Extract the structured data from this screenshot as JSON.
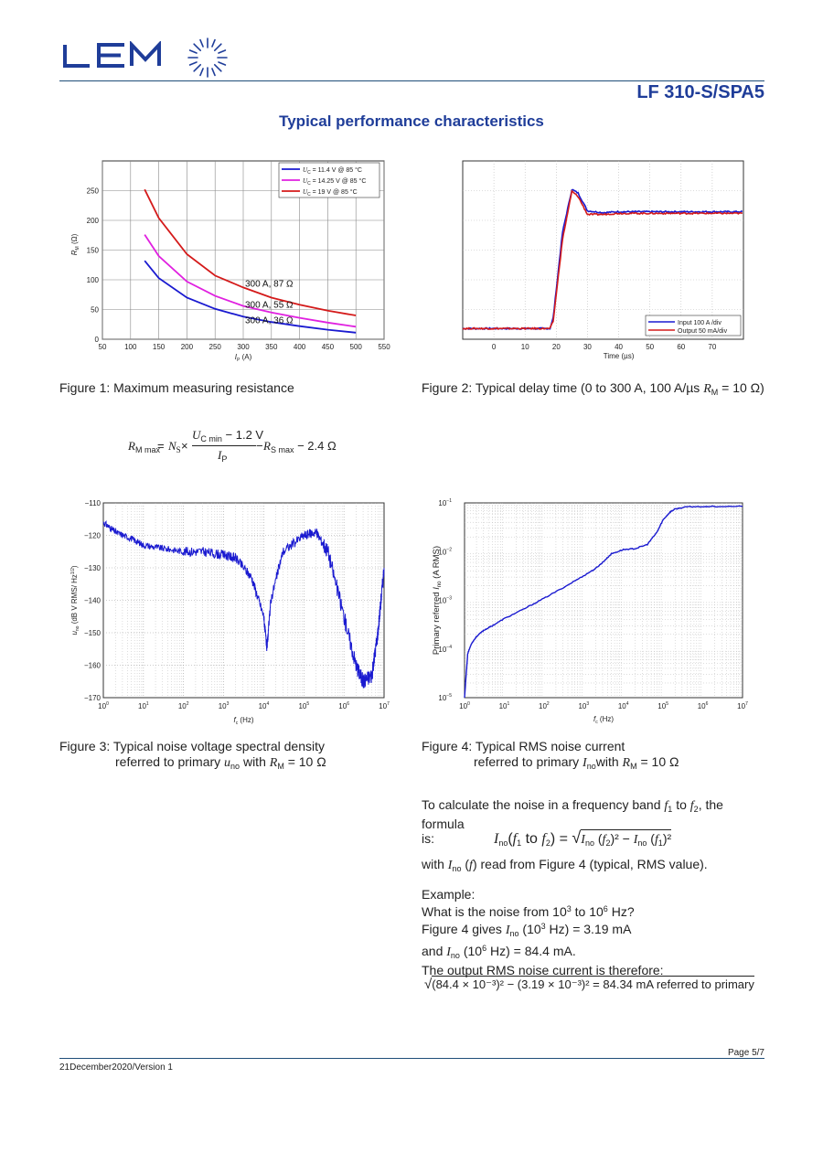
{
  "header": {
    "logo_text": "LEM",
    "product": "LF 310-S/SPA5",
    "section_title": "Typical performance characteristics"
  },
  "colors": {
    "brand_blue": "#1f3d99",
    "rule": "#1f4e79",
    "series_blue": "#1a1ad0",
    "series_magenta": "#e020e0",
    "series_red": "#d41a1a"
  },
  "figures": {
    "fig1": {
      "caption": "Figure 1: Maximum measuring resistance",
      "legend": [
        "= 11.4 V @ 85 °C",
        "= 14.25 V @ 85 °C",
        "= 19 V @ 85 °C"
      ],
      "legend_symbol": "U",
      "legend_sub": "C",
      "ylabel": "R",
      "ylabel_sub": "M",
      "ylabel_unit": "(Ω)",
      "xlabel": "I",
      "xlabel_sub": "P",
      "xlabel_unit": "(A)",
      "annotations": [
        "300 A, 87 Ω",
        "300 A, 55 Ω",
        "300 A, 36 Ω"
      ]
    },
    "fig2": {
      "caption_prefix": "Figure 2: Typical delay time (0 to 300 A, 100 A/µs ",
      "caption_var": "R",
      "caption_sub": "M",
      "caption_suffix": " = 10 Ω)",
      "legend": [
        "Input 100 A /div",
        "Output 50 mA/div"
      ],
      "xlabel": "Time (µs)"
    },
    "fig3": {
      "caption_line1": "Figure 3:  Typical noise voltage spectral density",
      "caption_line2_prefix": "referred to primary ",
      "caption_var": "u",
      "caption_var_sub": "no",
      "caption_mid": " with ",
      "caption_r": "R",
      "caption_r_sub": "M",
      "caption_suffix": " = 10 Ω",
      "ylabel": "u",
      "ylabel_sub": "no",
      "ylabel_unit": "(dB V RMS/ Hz",
      "ylabel_sup": "1/2",
      "ylabel_end": ")",
      "xlabel": "f",
      "xlabel_sub": "c",
      "xlabel_unit": "(Hz)"
    },
    "fig4": {
      "caption_line1": "Figure 4: Typical RMS noise current",
      "caption_line2_prefix": "referred to primary ",
      "caption_var": "I",
      "caption_var_sub": "no",
      "caption_mid": "with ",
      "caption_r": "R",
      "caption_r_sub": "M",
      "caption_suffix": " = 10 Ω",
      "ylabel_prefix": "Primary referred ",
      "ylabel_var": "I",
      "ylabel_sub": "no",
      "ylabel_unit": "(A RMS)",
      "xlabel": "f",
      "xlabel_sub": "c",
      "xlabel_unit": "(Hz)"
    }
  },
  "formula1": {
    "lhs": "R",
    "lhs_sub": "M max",
    "eq": " = ",
    "ns": "N",
    "ns_sub": "S",
    "times": " × ",
    "num_u": "U",
    "num_u_sub": "C min",
    "num_rest": " − 1.2 V",
    "den": "I",
    "den_sub": "P",
    "minus": " − ",
    "rs": "R",
    "rs_sub": "S max",
    "tail": " − 2.4 Ω"
  },
  "noise_text": {
    "intro_1": "To calculate the noise in a frequency band ",
    "f1": "f",
    "f1_sub": "1",
    "intro_to": " to ",
    "f2": "f",
    "f2_sub": "2",
    "intro_2": ", the formula",
    "intro_3": "is:",
    "with_1": "with ",
    "with_var": "I",
    "with_sub": "no",
    "with_paren": " (",
    "with_f": "f",
    "with_2": ") read from Figure 4 (typical, RMS value).",
    "example_label": "Example:",
    "q_1": "What is the noise from 10",
    "q_exp1": "3",
    "q_2": " to 10",
    "q_exp2": "6",
    "q_3": " Hz?",
    "g_1": "Figure 4 gives ",
    "g_var": "I",
    "g_sub": "no",
    "g_2": " (10",
    "g_exp": "3",
    "g_3": " Hz) = 3.19 mA",
    "a_1": "and ",
    "a_var": "I",
    "a_sub": "no",
    "a_2": " (10",
    "a_exp": "6",
    "a_3": " Hz) = 84.4 mA.",
    "result_label": "The output RMS noise current is therefore:",
    "calc": "(84.4 × 10⁻³)² − (3.19 × 10⁻³)² = 84.34 mA referred to primary"
  },
  "formula2": {
    "lhs": "I",
    "lhs_sub": "no",
    "open": "(",
    "f1": "f",
    "f1_sub": "1",
    "to": " to ",
    "f2": "f",
    "f2_sub": "2",
    "close": ") = ",
    "r1": "I",
    "r1_sub": "no",
    "r1_arg": " (",
    "r1_f": "f",
    "r1_f_sub": "2",
    "r1_close": ")² − ",
    "r2": "I",
    "r2_sub": "no",
    "r2_arg": " (",
    "r2_f": "f",
    "r2_f_sub": "1",
    "r2_close": ")²"
  },
  "footer": {
    "page": "Page 5/7",
    "version": "21December2020/Version 1"
  },
  "chart_data": [
    {
      "type": "line",
      "title": "",
      "x_ticks": [
        50,
        100,
        150,
        200,
        250,
        300,
        350,
        400,
        450,
        500,
        550
      ],
      "y_ticks": [
        0,
        50,
        100,
        150,
        200,
        250
      ],
      "xlim": [
        50,
        550
      ],
      "ylim": [
        0,
        300
      ],
      "grid": true,
      "legend_position": "top-right",
      "series": [
        {
          "name": "U_C = 11.4 V @ 85 °C",
          "x": [
            125,
            150,
            200,
            250,
            300,
            350,
            400,
            450,
            500
          ],
          "y": [
            132,
            103,
            70,
            51,
            38,
            29,
            22,
            16,
            11
          ]
        },
        {
          "name": "U_C = 14.25 V @ 85 °C",
          "x": [
            125,
            150,
            200,
            250,
            300,
            350,
            400,
            450,
            500
          ],
          "y": [
            176,
            140,
            97,
            73,
            56,
            45,
            36,
            28,
            21
          ]
        },
        {
          "name": "U_C = 19 V @ 85 °C",
          "x": [
            125,
            150,
            200,
            250,
            300,
            350,
            400,
            450,
            500
          ],
          "y": [
            252,
            204,
            143,
            107,
            87,
            70,
            58,
            48,
            40
          ]
        }
      ]
    },
    {
      "type": "line",
      "title": "",
      "x_ticks": [
        0,
        10,
        20,
        30,
        40,
        50,
        60,
        70
      ],
      "xlim": [
        -10,
        80
      ],
      "ylim": [
        0,
        1
      ],
      "grid": true,
      "legend_position": "bottom-right",
      "series": [
        {
          "name": "Input 100 A /div",
          "x": [
            -10,
            18,
            19,
            22,
            25,
            27,
            30,
            35,
            40,
            50,
            60,
            80
          ],
          "y": [
            0.06,
            0.06,
            0.12,
            0.6,
            0.84,
            0.82,
            0.72,
            0.71,
            0.715,
            0.715,
            0.715,
            0.715
          ]
        },
        {
          "name": "Output 50 mA/div",
          "x": [
            -10,
            18,
            19,
            22,
            25,
            27,
            30,
            35,
            40,
            50,
            60,
            80
          ],
          "y": [
            0.06,
            0.06,
            0.1,
            0.56,
            0.83,
            0.8,
            0.7,
            0.7,
            0.706,
            0.706,
            0.706,
            0.706
          ]
        }
      ]
    },
    {
      "type": "line",
      "title": "",
      "x_log": true,
      "x_ticks": [
        "10^0",
        "10^1",
        "10^2",
        "10^3",
        "10^4",
        "10^5",
        "10^6",
        "10^7"
      ],
      "y_ticks": [
        -110,
        -120,
        -130,
        -140,
        -150,
        -160,
        -170
      ],
      "xlim": [
        1,
        10000000
      ],
      "ylim": [
        -170,
        -110
      ],
      "grid": true,
      "series": [
        {
          "name": "",
          "x": [
            1,
            2,
            5,
            10,
            30,
            100,
            300,
            1000,
            2000,
            5000,
            10000,
            12000,
            15000,
            30000,
            100000,
            200000,
            400000,
            1000000,
            2000000,
            3000000,
            5000000,
            7000000,
            10000000
          ],
          "y": [
            -116,
            -119,
            -121,
            -123,
            -124,
            -125,
            -125,
            -126,
            -127,
            -133,
            -145,
            -155,
            -140,
            -125,
            -120,
            -119,
            -125,
            -145,
            -160,
            -165,
            -163,
            -150,
            -130
          ]
        }
      ]
    },
    {
      "type": "line",
      "title": "",
      "x_log": true,
      "y_log": true,
      "x_ticks": [
        "10^0",
        "10^1",
        "10^2",
        "10^3",
        "10^4",
        "10^5",
        "10^6",
        "10^7"
      ],
      "y_ticks": [
        "10^-5",
        "10^-4",
        "10^-3",
        "10^-2",
        "10^-1"
      ],
      "xlim": [
        1,
        10000000
      ],
      "ylim": [
        1e-05,
        0.1
      ],
      "grid": true,
      "series": [
        {
          "name": "",
          "x": [
            1,
            1.2,
            1.5,
            2,
            3,
            5,
            10,
            30,
            100,
            300,
            1000,
            2000,
            3000,
            5000,
            10000,
            20000,
            40000,
            70000,
            100000,
            150000,
            200000,
            400000,
            1000000,
            10000000
          ],
          "y": [
            1e-05,
            8e-05,
            0.00013,
            0.00018,
            0.00024,
            0.0003,
            0.00042,
            0.00065,
            0.0011,
            0.0018,
            0.00319,
            0.0045,
            0.006,
            0.009,
            0.011,
            0.0115,
            0.014,
            0.025,
            0.045,
            0.065,
            0.075,
            0.083,
            0.0844,
            0.085
          ]
        }
      ]
    }
  ]
}
